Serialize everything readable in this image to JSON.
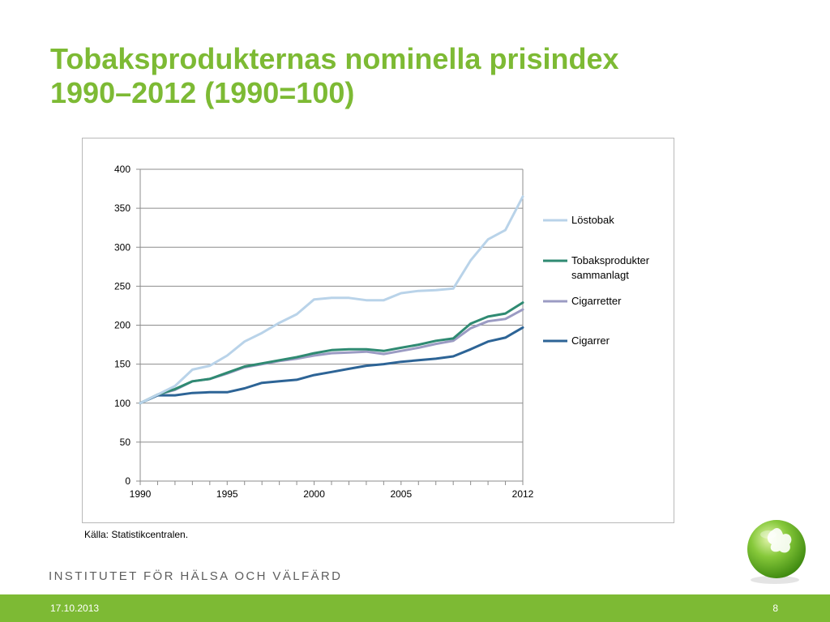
{
  "slide": {
    "title_line1": "Tobaksprodukternas nominella prisindex",
    "title_line2": "1990–2012 (1990=100)",
    "source": "Källa: Statistikcentralen.",
    "institute": "INSTITUTET FÖR HÄLSA OCH VÄLFÄRD",
    "date": "17.10.2013",
    "page_number": "8"
  },
  "colors": {
    "title": "#7dba34",
    "footer": "#7dba34",
    "lostobak": "#b9d3e9",
    "tobaksprodukter": "#2f8a72",
    "cigarretter": "#9b9bc3",
    "cigarrer": "#2d6496"
  },
  "chart_data": {
    "type": "line",
    "title": "",
    "xlabel": "",
    "ylabel": "",
    "x": [
      1990,
      1991,
      1992,
      1993,
      1994,
      1995,
      1996,
      1997,
      1998,
      1999,
      2000,
      2001,
      2002,
      2003,
      2004,
      2005,
      2006,
      2007,
      2008,
      2009,
      2010,
      2011,
      2012
    ],
    "x_tick_labels": [
      {
        "x": 1990,
        "label": "1990"
      },
      {
        "x": 1995,
        "label": "1995"
      },
      {
        "x": 2000,
        "label": "2000"
      },
      {
        "x": 2005,
        "label": "2005"
      },
      {
        "x": 2012,
        "label": "2012"
      }
    ],
    "ylim": [
      0,
      400
    ],
    "y_ticks": [
      0,
      50,
      100,
      150,
      200,
      250,
      300,
      350,
      400
    ],
    "grid": "horizontal",
    "legend_position": "right",
    "series": [
      {
        "name": "Löstobak",
        "color_key": "lostobak",
        "values": [
          100,
          111,
          122,
          143,
          148,
          161,
          179,
          190,
          203,
          214,
          233,
          235,
          235,
          232,
          232,
          241,
          244,
          245,
          247,
          283,
          310,
          322,
          365
        ]
      },
      {
        "name": "Tobaksprodukter sammanlagt",
        "legend_lines": [
          "Tobaksprodukter",
          "sammanlagt"
        ],
        "color_key": "tobaksprodukter",
        "values": [
          100,
          111,
          118,
          128,
          131,
          139,
          147,
          151,
          155,
          159,
          164,
          168,
          169,
          169,
          167,
          171,
          175,
          180,
          183,
          202,
          211,
          215,
          229
        ]
      },
      {
        "name": "Cigarretter",
        "color_key": "cigarretter",
        "values": [
          100,
          111,
          117,
          128,
          131,
          138,
          146,
          150,
          154,
          157,
          161,
          164,
          165,
          166,
          163,
          167,
          171,
          176,
          180,
          196,
          205,
          208,
          220
        ]
      },
      {
        "name": "Cigarrer",
        "color_key": "cigarrer",
        "values": [
          100,
          110,
          110,
          113,
          114,
          114,
          119,
          126,
          128,
          130,
          136,
          140,
          144,
          148,
          150,
          153,
          155,
          157,
          160,
          169,
          179,
          184,
          197
        ]
      }
    ]
  }
}
